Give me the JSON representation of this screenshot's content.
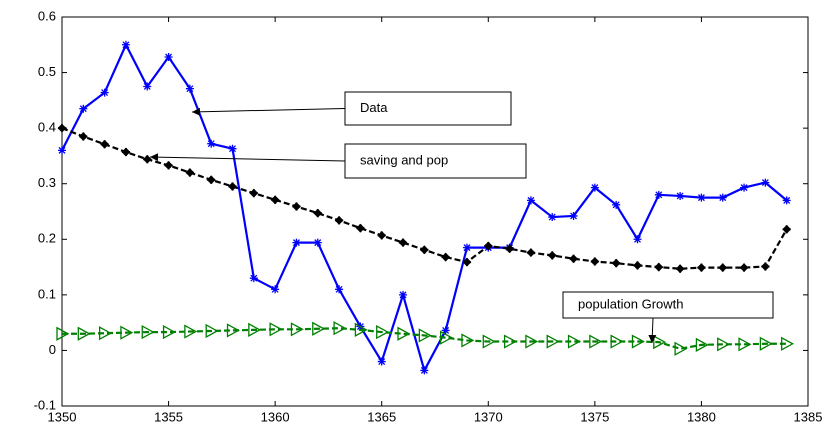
{
  "chart_data": {
    "type": "line",
    "x": [
      1350,
      1351,
      1352,
      1353,
      1354,
      1355,
      1356,
      1357,
      1358,
      1359,
      1360,
      1361,
      1362,
      1363,
      1364,
      1365,
      1366,
      1367,
      1368,
      1369,
      1370,
      1371,
      1372,
      1373,
      1374,
      1375,
      1376,
      1377,
      1378,
      1379,
      1380,
      1381,
      1382,
      1383,
      1384
    ],
    "series": [
      {
        "name": "Data",
        "color": "#0000ff",
        "marker": "star",
        "values": [
          0.36,
          0.435,
          0.464,
          0.55,
          0.475,
          0.528,
          0.471,
          0.372,
          0.363,
          0.13,
          0.11,
          0.194,
          0.194,
          0.11,
          0.043,
          -0.02,
          0.1,
          -0.036,
          0.036,
          0.185,
          0.185,
          0.185,
          0.27,
          0.24,
          0.242,
          0.293,
          0.262,
          0.2,
          0.28,
          0.278,
          0.275,
          0.275,
          0.293,
          0.302,
          0.27
        ]
      },
      {
        "name": "saving and pop",
        "color": "#000000",
        "marker": "plus",
        "dashed": true,
        "values": [
          0.4,
          0.385,
          0.371,
          0.357,
          0.344,
          0.333,
          0.32,
          0.307,
          0.295,
          0.283,
          0.271,
          0.259,
          0.247,
          0.234,
          0.22,
          0.207,
          0.194,
          0.181,
          0.168,
          0.159,
          0.188,
          0.183,
          0.176,
          0.171,
          0.165,
          0.16,
          0.157,
          0.153,
          0.15,
          0.147,
          0.149,
          0.149,
          0.149,
          0.151,
          0.218
        ]
      },
      {
        "name": "population Growth",
        "color": "#008000",
        "marker": "triangle-right",
        "dashed": true,
        "values": [
          0.03,
          0.03,
          0.031,
          0.032,
          0.033,
          0.033,
          0.034,
          0.035,
          0.036,
          0.037,
          0.038,
          0.038,
          0.039,
          0.04,
          0.037,
          0.033,
          0.03,
          0.027,
          0.023,
          0.018,
          0.016,
          0.016,
          0.016,
          0.016,
          0.016,
          0.016,
          0.016,
          0.016,
          0.015,
          0.003,
          0.01,
          0.011,
          0.011,
          0.012,
          0.012
        ]
      }
    ],
    "xlim": [
      1350,
      1385
    ],
    "xticks": [
      1350,
      1355,
      1360,
      1365,
      1370,
      1375,
      1380,
      1385
    ],
    "ylim": [
      -0.1,
      0.6
    ],
    "yticks": [
      -0.1,
      0,
      0.1,
      0.2,
      0.3,
      0.4,
      0.5,
      0.6
    ]
  }
}
